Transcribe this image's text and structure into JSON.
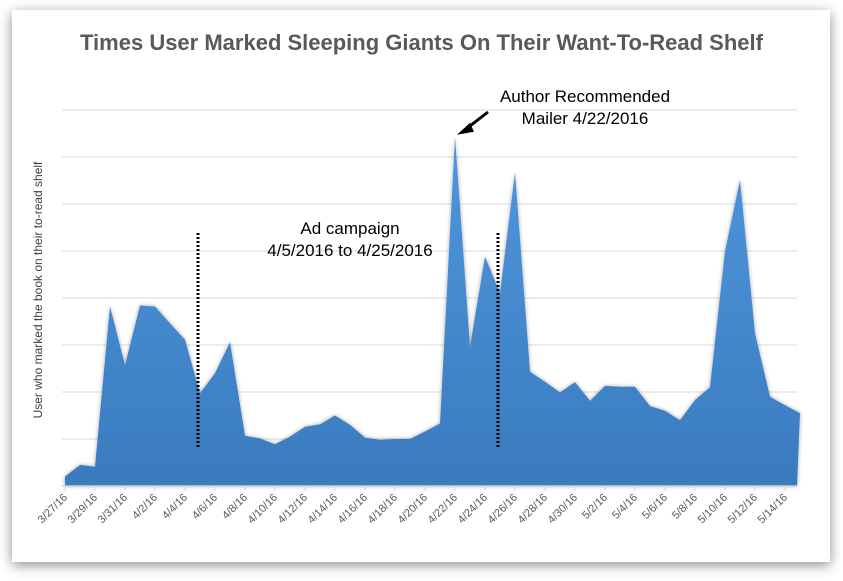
{
  "chart_data": {
    "type": "area",
    "title": "Times User Marked Sleeping Giants On Their Want-To-Read Shelf",
    "xlabel": "",
    "ylabel": "User who marked the book on their to-read shelf",
    "y_unit_note": "no y tick labels shown; values in gridline units",
    "ylim": [
      0,
      8
    ],
    "grid": true,
    "fill_color": "#4a8fd6",
    "x": [
      "3/27/16",
      "3/28/16",
      "3/29/16",
      "3/30/16",
      "3/31/16",
      "4/1/16",
      "4/2/16",
      "4/3/16",
      "4/4/16",
      "4/5/16",
      "4/6/16",
      "4/7/16",
      "4/8/16",
      "4/9/16",
      "4/10/16",
      "4/11/16",
      "4/12/16",
      "4/13/16",
      "4/14/16",
      "4/15/16",
      "4/16/16",
      "4/17/16",
      "4/18/16",
      "4/19/16",
      "4/20/16",
      "4/21/16",
      "4/22/16",
      "4/23/16",
      "4/24/16",
      "4/25/16",
      "4/26/16",
      "4/27/16",
      "4/28/16",
      "4/29/16",
      "4/30/16",
      "5/1/16",
      "5/2/16",
      "5/3/16",
      "5/4/16",
      "5/5/16",
      "5/6/16",
      "5/7/16",
      "5/8/16",
      "5/9/16",
      "5/10/16",
      "5/11/16",
      "5/12/16",
      "5/13/16",
      "5/14/16",
      "5/15/16"
    ],
    "values": [
      0.2,
      0.45,
      0.41,
      3.82,
      2.57,
      3.84,
      3.82,
      3.46,
      3.11,
      1.97,
      2.4,
      3.06,
      1.07,
      1.01,
      0.89,
      1.05,
      1.26,
      1.31,
      1.5,
      1.3,
      1.03,
      0.98,
      1.0,
      1.0,
      1.16,
      1.33,
      7.43,
      2.96,
      4.88,
      4.1,
      6.67,
      2.43,
      2.22,
      1.99,
      2.21,
      1.81,
      2.13,
      2.11,
      2.11,
      1.7,
      1.6,
      1.4,
      1.83,
      2.1,
      4.99,
      6.51,
      3.25,
      1.9,
      1.72,
      1.55
    ],
    "tick_labels": [
      "3/27/16",
      "3/29/16",
      "3/31/16",
      "4/2/16",
      "4/4/16",
      "4/6/16",
      "4/8/16",
      "4/10/16",
      "4/12/16",
      "4/14/16",
      "4/16/16",
      "4/18/16",
      "4/20/16",
      "4/22/16",
      "4/24/16",
      "4/26/16",
      "4/28/16",
      "4/30/16",
      "5/2/16",
      "5/4/16",
      "5/6/16",
      "5/8/16",
      "5/10/16",
      "5/12/16",
      "5/14/16"
    ],
    "annotations": [
      {
        "text_line1": "Ad campaign",
        "text_line2": "4/5/2016 to 4/25/2016",
        "markers_at": [
          "4/5/16",
          "4/25/16"
        ]
      },
      {
        "text_line1": "Author Recommended",
        "text_line2": "Mailer 4/22/2016",
        "arrow_to": "4/22/16"
      }
    ]
  }
}
